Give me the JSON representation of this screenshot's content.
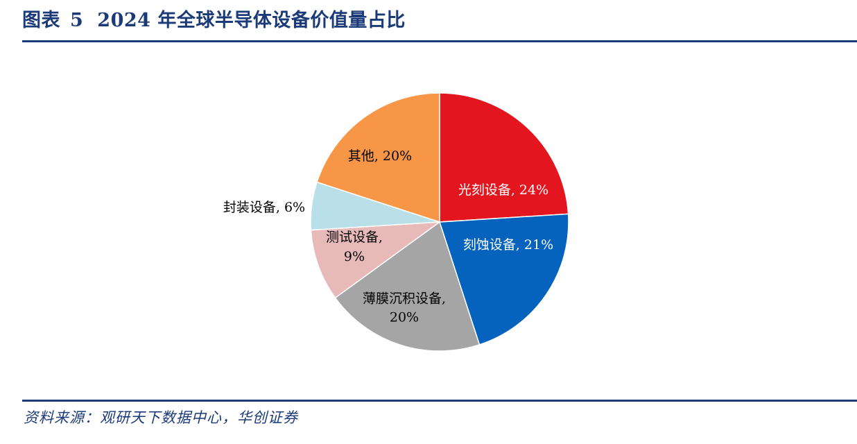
{
  "figure": {
    "label": "图表",
    "number": "5",
    "title": "2024 年全球半导体设备价值量占比"
  },
  "source": "资料来源：观研天下数据中心，华创证券",
  "chart_data": {
    "type": "pie",
    "title": "2024 年全球半导体设备价值量占比",
    "start_angle_deg": 0,
    "direction": "clockwise",
    "slices": [
      {
        "name": "光刻设备",
        "value": 24,
        "label_lines": [
          "光刻设备, 24%"
        ],
        "color": "#e3161f",
        "label_color": "#ffffff"
      },
      {
        "name": "刻蚀设备",
        "value": 21,
        "label_lines": [
          "刻蚀设备, 21%"
        ],
        "color": "#0563be",
        "label_color": "#ffffff"
      },
      {
        "name": "薄膜沉积设备",
        "value": 20,
        "label_lines": [
          "薄膜沉积设备,",
          "20%"
        ],
        "color": "#a5a5a5",
        "label_color": "#000000"
      },
      {
        "name": "测试设备",
        "value": 9,
        "label_lines": [
          "测试设备,",
          "9%"
        ],
        "color": "#e8b9b9",
        "label_color": "#000000"
      },
      {
        "name": "封装设备",
        "value": 6,
        "label_lines": [
          "封装设备, 6%"
        ],
        "color": "#b9dfe8",
        "label_color": "#000000",
        "label_outside": true
      },
      {
        "name": "其他",
        "value": 20,
        "label_lines": [
          "其他, 20%"
        ],
        "color": "#f79646",
        "label_color": "#000000"
      }
    ]
  }
}
